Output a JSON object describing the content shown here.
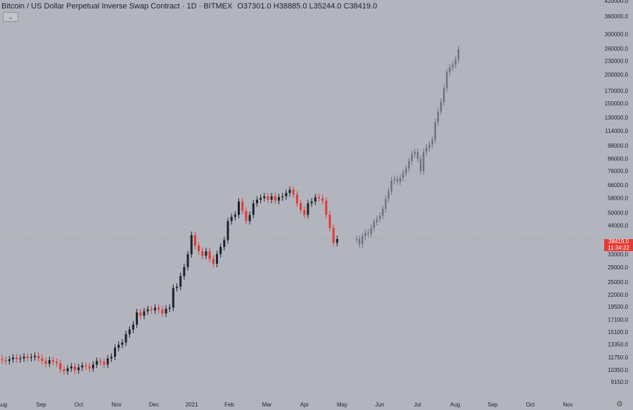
{
  "legend": {
    "title": "Bitcoin / US Dollar Perpetual Inverse Swap Contract · 1D · BITMEX",
    "o_label": "O",
    "o_value": "37301.0",
    "h_label": "H",
    "h_value": "38885.0",
    "l_label": "L",
    "l_value": "35244.0",
    "c_label": "C",
    "c_value": "38419.0"
  },
  "collapse_label": "⌄",
  "price_badge": {
    "price": "38419.0",
    "countdown": "11:34:22",
    "color": "#e53935"
  },
  "colors": {
    "background": "#b2b5be",
    "up": "#1e222d",
    "down": "#e53935",
    "projection": "#6d717c"
  },
  "icons": {
    "settings": "gear-icon"
  },
  "chart_data": {
    "type": "candlestick",
    "scale": "log",
    "title": "",
    "y_tick_labels": [
      "420000.0",
      "360000.0",
      "300000.0",
      "260000.0",
      "230000.0",
      "200000.0",
      "170000.0",
      "150000.0",
      "130000.0",
      "114000.0",
      "98000.0",
      "86000.0",
      "76000.0",
      "66000.0",
      "58000.0",
      "50000.0",
      "44000.0",
      "38419.0",
      "33000.0",
      "29000.0",
      "25000.0",
      "22000.0",
      "19500.0",
      "17100.0",
      "15100.0",
      "13350.0",
      "11750.0",
      "10350.0",
      "9150.0"
    ],
    "x_tick_labels": [
      "Aug",
      "Sep",
      "Oct",
      "Nov",
      "Dec",
      "2021",
      "Feb",
      "Mar",
      "Apr",
      "May",
      "Jun",
      "Jul",
      "Aug",
      "Sep",
      "Oct",
      "Nov"
    ],
    "ylim": [
      8600,
      420000
    ],
    "history": {
      "start": "2020-08-01",
      "closes": [
        11400,
        11300,
        11500,
        11700,
        11500,
        11600,
        11800,
        11650,
        11750,
        11900,
        11600,
        11300,
        11000,
        11400,
        11200,
        11050,
        10400,
        10200,
        10500,
        10700,
        10300,
        10600,
        10800,
        10700,
        10500,
        10900,
        11300,
        11200,
        10900,
        11600,
        11800,
        12900,
        13300,
        13600,
        14800,
        15500,
        16300,
        18400,
        17800,
        18600,
        19000,
        18800,
        19300,
        18900,
        18200,
        19100,
        19300,
        23500,
        23800,
        26500,
        29000,
        33000,
        40000,
        36000,
        34000,
        32500,
        34000,
        31500,
        30000,
        33000,
        35500,
        38000,
        46000,
        48000,
        49000,
        56000,
        51000,
        46000,
        49000,
        55000,
        57000,
        58000,
        59000,
        57000,
        59000,
        56500,
        58500,
        59000,
        61000,
        63000,
        60000,
        55000,
        51500,
        49000,
        55000,
        56000,
        58500,
        57800,
        56500,
        49000,
        43000,
        37000,
        38419
      ],
      "step_days": 3
    },
    "projection": {
      "start": "2021-05-20",
      "closes": [
        38419,
        36500,
        39500,
        41000,
        40500,
        43000,
        45500,
        47000,
        48500,
        52000,
        57500,
        62000,
        69000,
        70000,
        68500,
        71000,
        74500,
        78000,
        84000,
        90000,
        92000,
        86000,
        76000,
        92000,
        96000,
        99000,
        104000,
        124000,
        138000,
        152000,
        175000,
        205000,
        215000,
        221000,
        233000,
        258000
      ],
      "step_days": 2.4
    }
  }
}
